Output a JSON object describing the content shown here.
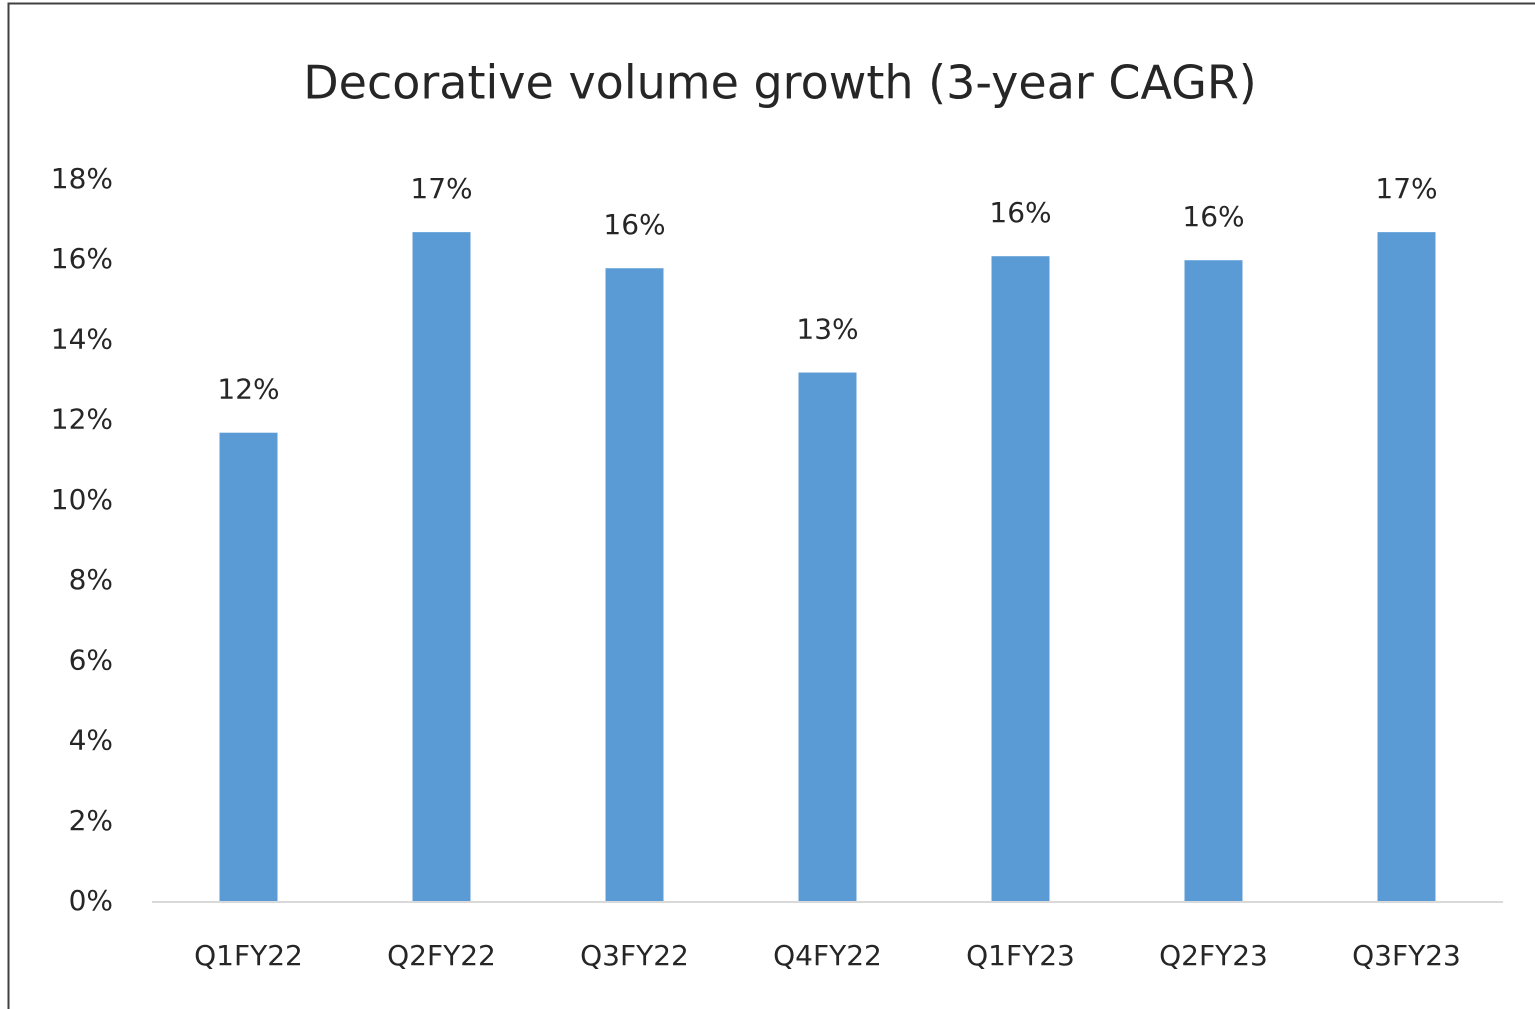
{
  "chart_data": {
    "type": "bar",
    "title": "Decorative volume growth (3-year CAGR)",
    "categories": [
      "Q1FY22",
      "Q2FY22",
      "Q3FY22",
      "Q4FY22",
      "Q1FY23",
      "Q2FY23",
      "Q3FY23"
    ],
    "values": [
      11.7,
      16.7,
      15.8,
      13.2,
      16.1,
      16.0,
      16.7
    ],
    "value_labels": [
      "12%",
      "17%",
      "16%",
      "13%",
      "16%",
      "16%",
      "17%"
    ],
    "color": "#5b9bd5",
    "ylim": [
      0,
      18
    ],
    "yticks": [
      {
        "value": 0,
        "label": "0%"
      },
      {
        "value": 2,
        "label": "2%"
      },
      {
        "value": 4,
        "label": "4%"
      },
      {
        "value": 6,
        "label": "6%"
      },
      {
        "value": 8,
        "label": "8%"
      },
      {
        "value": 10,
        "label": "10%"
      },
      {
        "value": 12,
        "label": "12%"
      },
      {
        "value": 14,
        "label": "14%"
      },
      {
        "value": 16,
        "label": "16%"
      },
      {
        "value": 18,
        "label": "18%"
      }
    ],
    "grid": false
  }
}
